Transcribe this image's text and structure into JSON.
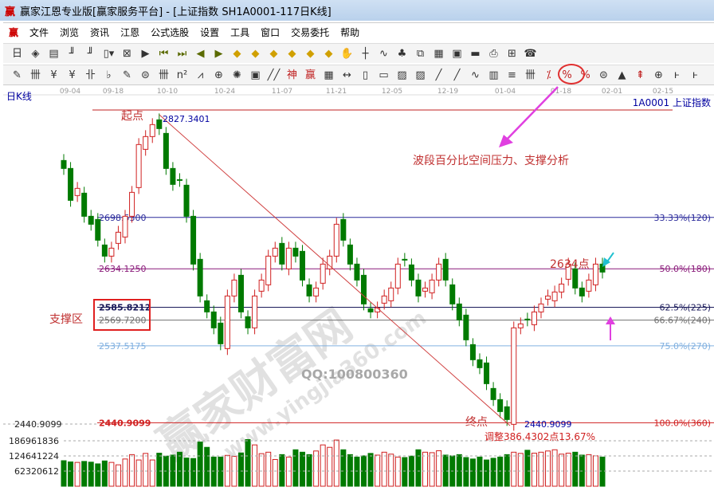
{
  "window": {
    "logo": "赢",
    "title": "赢家江恩专业版[赢家服务平台] - [上证指数  SH1A0001-117日K线]"
  },
  "menu": {
    "logo": "赢",
    "items": [
      "文件",
      "浏览",
      "资讯",
      "江恩",
      "公式选股",
      "设置",
      "工具",
      "窗口",
      "交易委托",
      "帮助"
    ]
  },
  "toolbar1": {
    "icons": [
      "period-day-dropdown",
      "chart-style-icon",
      "note-icon",
      "indicator-3-icon",
      "indicator-9-icon",
      "candle-type-dropdown",
      "zoom-icon",
      "flag-icon",
      "first-icon",
      "last-icon",
      "prev-icon",
      "next-icon",
      "move-left-icon",
      "move-right-icon",
      "expand-icon",
      "shrink-icon",
      "cross-icon",
      "grid-icon",
      "hand-icon",
      "crosshair-icon",
      "pen-icon",
      "gift-icon",
      "layers-icon",
      "calendar-icon",
      "calculator-icon",
      "save-icon",
      "print-icon",
      "network-icon",
      "phone-icon"
    ],
    "glyphs": [
      "日▾",
      "◈",
      "▤",
      "╜",
      "╜",
      "▯▾",
      "⊠",
      "▶",
      "⏮",
      "⏭",
      "◀",
      "▶",
      "◆",
      "◆",
      "◆",
      "◆",
      "◆",
      "◆",
      "✋",
      "┼",
      "∿",
      "♣",
      "⧉",
      "▦",
      "▣",
      "▬",
      "⎙",
      "⊞",
      "☎"
    ]
  },
  "toolbar2": {
    "glyphs": [
      "✎",
      "卌",
      "¥",
      "¥",
      "卝",
      "♭",
      "✎",
      "⊜",
      "卌",
      "n²",
      "⩘",
      "⊕",
      "✺",
      "▣",
      "╱╱",
      "神",
      "赢",
      "▦",
      "↔",
      "▯",
      "▭",
      "▨",
      "▨",
      "╱",
      "╱",
      "∿",
      "▥",
      "≡",
      "卌",
      "⁒",
      "%",
      "%",
      "⊜",
      "▲",
      "⇞",
      "⊕",
      "ⱶ",
      "ⱶ"
    ],
    "highlighted_icon": "fibonacci-percent-icon"
  },
  "chart": {
    "period_label": "日K线",
    "symbol_label": "1A0001  上证指数",
    "date_ticks": [
      "09-04",
      "09-18",
      "10-10",
      "10-24",
      "11-07",
      "11-21",
      "12-05",
      "12-19",
      "01-04",
      "01-18",
      "02-01",
      "02-15"
    ],
    "price_axis_labels": [
      "2440.9099"
    ],
    "volume_axis_labels": [
      "186961836",
      "124641224",
      "62320612"
    ],
    "fib_levels": [
      {
        "price": 2698.53,
        "label": "2698.5300",
        "right": "33.33%(120)",
        "color": "#2c2c9c"
      },
      {
        "price": 2634.125,
        "label": "2634.1250",
        "right": "50.0%(180)",
        "color": "#8a1a7a"
      },
      {
        "price": 2585.8212,
        "label": "2585.8212",
        "right": "62.5%(225)",
        "color": "#1a1a5a"
      },
      {
        "price": 2569.72,
        "label": "2569.7200",
        "right": "66.67%(240)",
        "color": "#707070"
      },
      {
        "price": 2537.5175,
        "label": "2537.5175",
        "right": "75.0%(270)",
        "color": "#80b0e0"
      },
      {
        "price": 2440.9099,
        "label": "2440.9099",
        "right": "100.0%(360)",
        "color": "#d02020"
      }
    ],
    "annotations": {
      "start": "起点",
      "start_price": "2827.3401",
      "support": "支撑区",
      "end": "终点",
      "end_price": "2440.9099",
      "adjust": "调整386.4302点13.67%",
      "resistance": "2634点",
      "analysis": "波段百分比空间压力、支撑分析"
    },
    "watermarks": [
      "赢家财富网",
      "www.yingjia360.com",
      "QQ:100800360"
    ],
    "colors": {
      "up": "#d02020",
      "down": "#007a00",
      "highlight": "#e03030",
      "arrow_magenta": "#e040e0",
      "arrow_cyan": "#20c0d0"
    }
  },
  "chart_data": {
    "type": "candlestick",
    "ylim": [
      2430,
      2835
    ],
    "closes": [
      2760,
      2720,
      2735,
      2700,
      2690,
      2670,
      2650,
      2660,
      2680,
      2700,
      2730,
      2790,
      2800,
      2815,
      2810,
      2760,
      2740,
      2745,
      2700,
      2640,
      2600,
      2580,
      2560,
      2540,
      2600,
      2620,
      2580,
      2560,
      2600,
      2620,
      2650,
      2660,
      2640,
      2660,
      2650,
      2620,
      2600,
      2610,
      2640,
      2650,
      2690,
      2670,
      2640,
      2620,
      2590,
      2580,
      2585,
      2600,
      2610,
      2640,
      2645,
      2620,
      2600,
      2610,
      2620,
      2640,
      2620,
      2590,
      2570,
      2545,
      2520,
      2510,
      2490,
      2470,
      2455,
      2445,
      2560,
      2565,
      2570,
      2580,
      2590,
      2600,
      2605,
      2615,
      2640,
      2610,
      2600,
      2620,
      2640,
      2630
    ],
    "volumes": [
      105,
      100,
      98,
      102,
      99,
      92,
      104,
      98,
      88,
      112,
      130,
      108,
      135,
      108,
      136,
      124,
      128,
      140,
      116,
      114,
      182,
      160,
      120,
      120,
      127,
      123,
      137,
      192,
      170,
      134,
      140,
      110,
      130,
      120,
      150,
      140,
      130,
      145,
      170,
      160,
      190,
      150,
      130,
      120,
      125,
      135,
      128,
      140,
      132,
      120,
      118,
      124,
      150,
      140,
      138,
      146,
      128,
      125,
      130,
      118,
      112,
      120,
      108,
      115,
      120,
      130,
      140,
      135,
      148,
      136,
      140,
      145,
      150,
      132,
      136,
      140,
      128,
      130,
      125,
      120
    ]
  }
}
